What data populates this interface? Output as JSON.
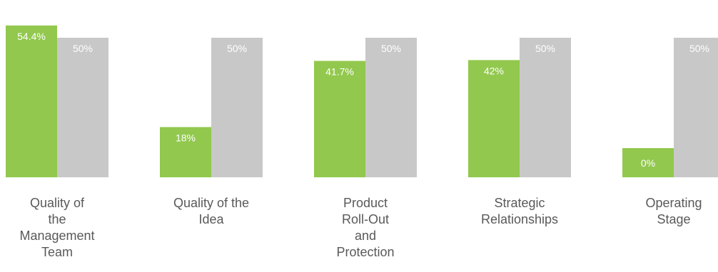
{
  "chart_data": {
    "type": "bar",
    "categories": [
      "Quality of the Management Team",
      "Quality of the Idea",
      "Product Roll-Out and Protection",
      "Strategic Relationships",
      "Operating Stage"
    ],
    "category_label_lines": [
      [
        "Quality of",
        "the",
        "Management",
        "Team"
      ],
      [
        "Quality of the",
        "Idea"
      ],
      [
        "Product",
        "Roll-Out",
        "and",
        "Protection"
      ],
      [
        "Strategic",
        "Relationships"
      ],
      [
        "Operating",
        "Stage"
      ]
    ],
    "series": [
      {
        "values": [
          54.4,
          18,
          41.7,
          42,
          0
        ],
        "labels": [
          "54.4%",
          "18%",
          "41.7%",
          "42%",
          "0%"
        ],
        "color": "#92c84e"
      },
      {
        "values": [
          50,
          50,
          50,
          50,
          50
        ],
        "labels": [
          "50%",
          "50%",
          "50%",
          "50%",
          "50%"
        ],
        "color": "#c8c8c8"
      }
    ],
    "ylim": [
      0,
      60
    ],
    "grid": false,
    "legend": "none"
  }
}
